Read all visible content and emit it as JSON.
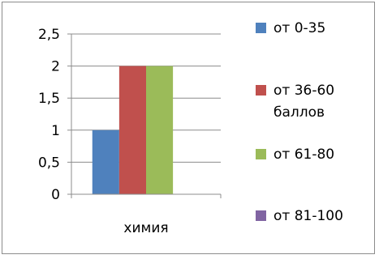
{
  "chart_data": {
    "type": "bar",
    "categories": [
      "химия"
    ],
    "series": [
      {
        "name": "от 0-35",
        "values": [
          1
        ],
        "color": "#4f81bd"
      },
      {
        "name": "от 36-60 баллов",
        "values": [
          2
        ],
        "color": "#c0504d"
      },
      {
        "name": "от 61-80",
        "values": [
          2
        ],
        "color": "#9bbb59"
      },
      {
        "name": "от 81-100",
        "values": [
          0
        ],
        "color": "#8064a2"
      }
    ],
    "ylim": [
      0,
      2.5
    ],
    "yticks": [
      "0",
      "0,5",
      "1",
      "1,5",
      "2",
      "2,5"
    ],
    "grid": true,
    "legend": {
      "placement": "right",
      "lines": [
        [
          "от 0-35"
        ],
        [
          "от 36-60",
          "баллов"
        ],
        [
          "от 61-80"
        ],
        [
          "от 81-100"
        ]
      ]
    }
  }
}
